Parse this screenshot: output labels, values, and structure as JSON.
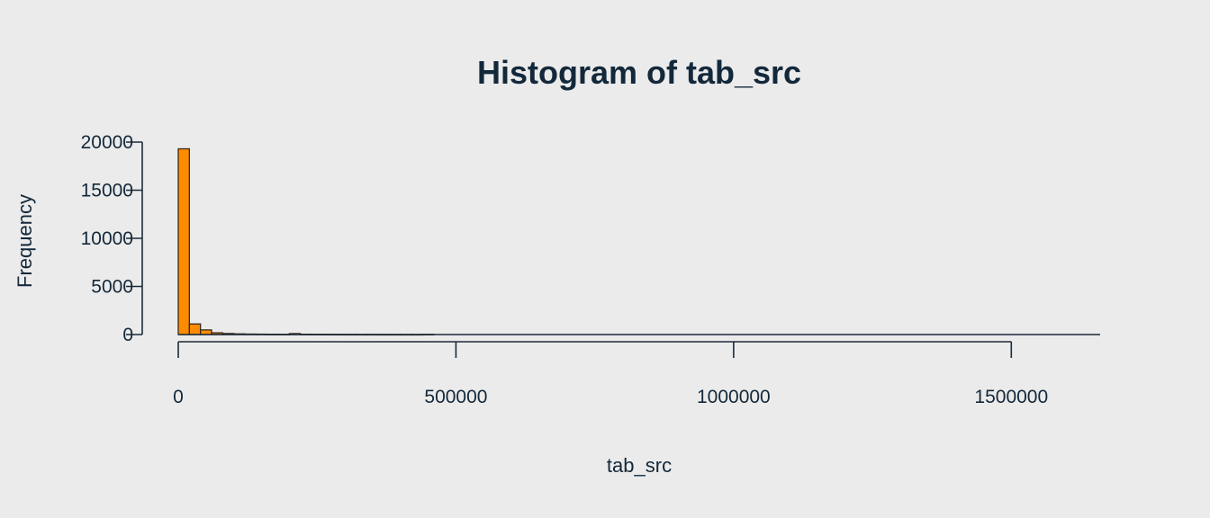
{
  "chart_data": {
    "type": "bar",
    "title": "Histogram of tab_src",
    "xlabel": "tab_src",
    "ylabel": "Frequency",
    "bin_width": 20000,
    "bins_start": [
      0,
      20000,
      40000,
      60000,
      80000,
      100000,
      120000,
      140000,
      160000,
      180000,
      200000,
      220000,
      240000,
      260000,
      280000,
      300000,
      320000,
      340000,
      360000,
      380000,
      400000,
      420000,
      440000
    ],
    "values": [
      19300,
      1100,
      480,
      180,
      110,
      70,
      50,
      40,
      30,
      25,
      100,
      30,
      20,
      15,
      12,
      10,
      8,
      8,
      6,
      6,
      5,
      5,
      15
    ],
    "xlim": [
      0,
      1660000
    ],
    "ylim": [
      0,
      20000
    ],
    "x_ticks": [
      0,
      500000,
      1000000,
      1500000
    ],
    "x_tick_labels": [
      "0",
      "500000",
      "1000000",
      "1500000"
    ],
    "y_ticks": [
      0,
      5000,
      10000,
      15000,
      20000
    ],
    "y_tick_labels": [
      "0",
      "5000",
      "10000",
      "15000",
      "20000"
    ],
    "bar_fill": "#ff8c00",
    "bar_stroke": "#3a2a1a",
    "axis_color": "#1c2b3a",
    "text_color": "#13283a",
    "background": "#ebebeb",
    "grid": false
  }
}
